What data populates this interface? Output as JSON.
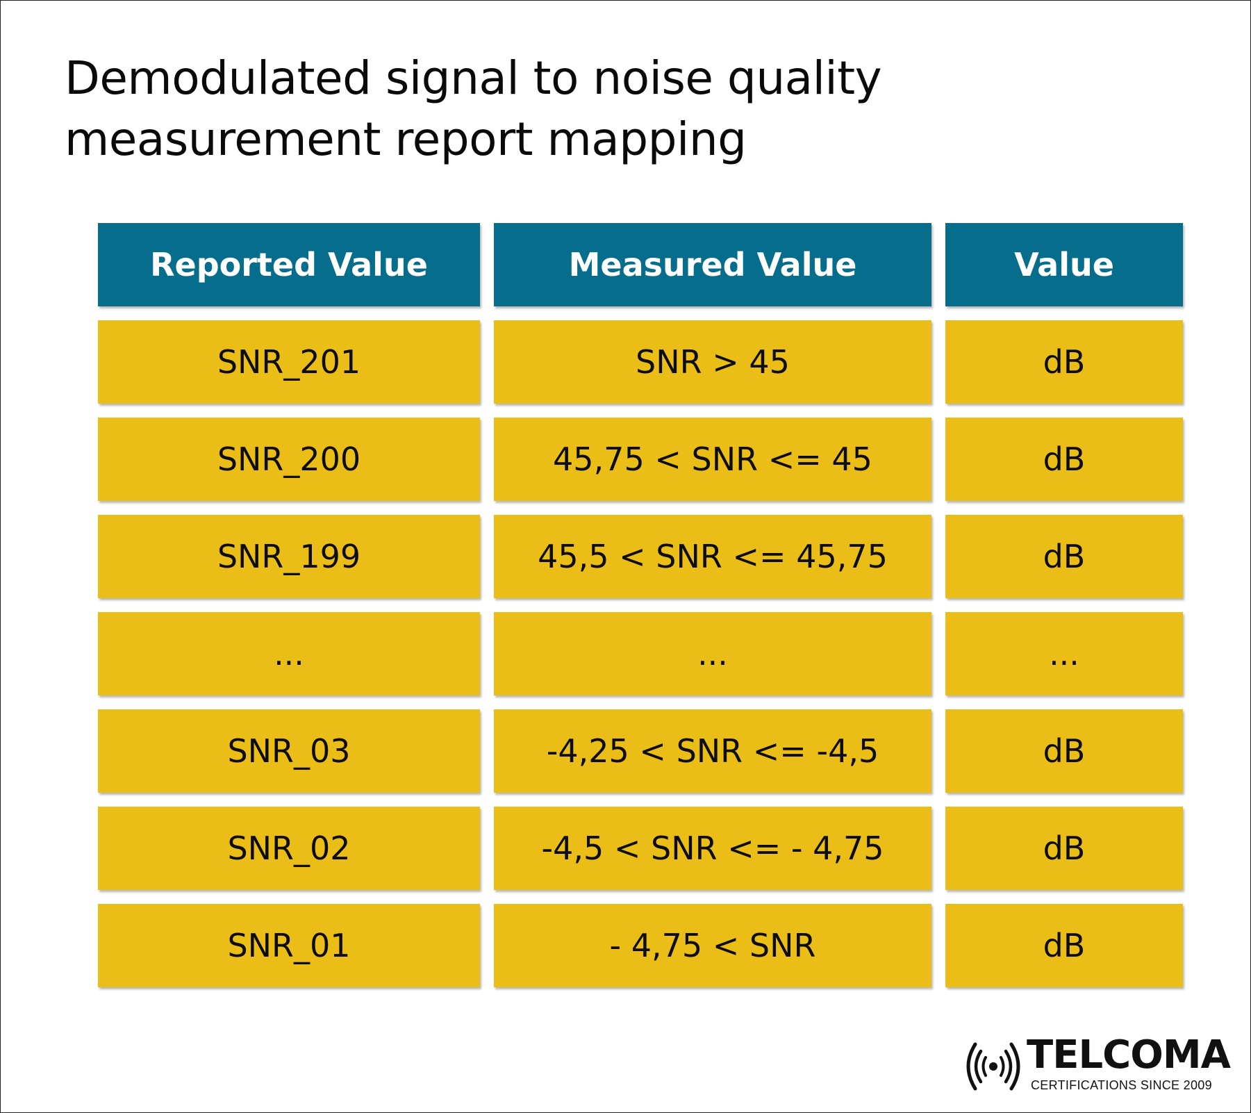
{
  "title": {
    "line1": "Demodulated signal to noise quality",
    "line2": "measurement report mapping"
  },
  "table": {
    "headers": [
      "Reported Value",
      "Measured Value",
      "Value"
    ],
    "rows": [
      [
        "SNR_201",
        "SNR > 45",
        "dB"
      ],
      [
        "SNR_200",
        "45,75 < SNR <= 45",
        "dB"
      ],
      [
        "SNR_199",
        "45,5 < SNR <= 45,75",
        "dB"
      ],
      [
        "...",
        "...",
        "..."
      ],
      [
        "SNR_03",
        "-4,25 < SNR <= -4,5",
        "dB"
      ],
      [
        "SNR_02",
        "-4,5 < SNR <= - 4,75",
        "dB"
      ],
      [
        "SNR_01",
        "- 4,75 < SNR",
        "dB"
      ]
    ]
  },
  "logo": {
    "name": "TELCOMA",
    "tagline": "CERTIFICATIONS SINCE 2009",
    "icon": "broadcast-signal-icon"
  },
  "colors": {
    "header_bg": "#076d8c",
    "cell_bg": "#ebbd17",
    "header_text": "#ffffff",
    "cell_text": "#0d0d0d"
  }
}
